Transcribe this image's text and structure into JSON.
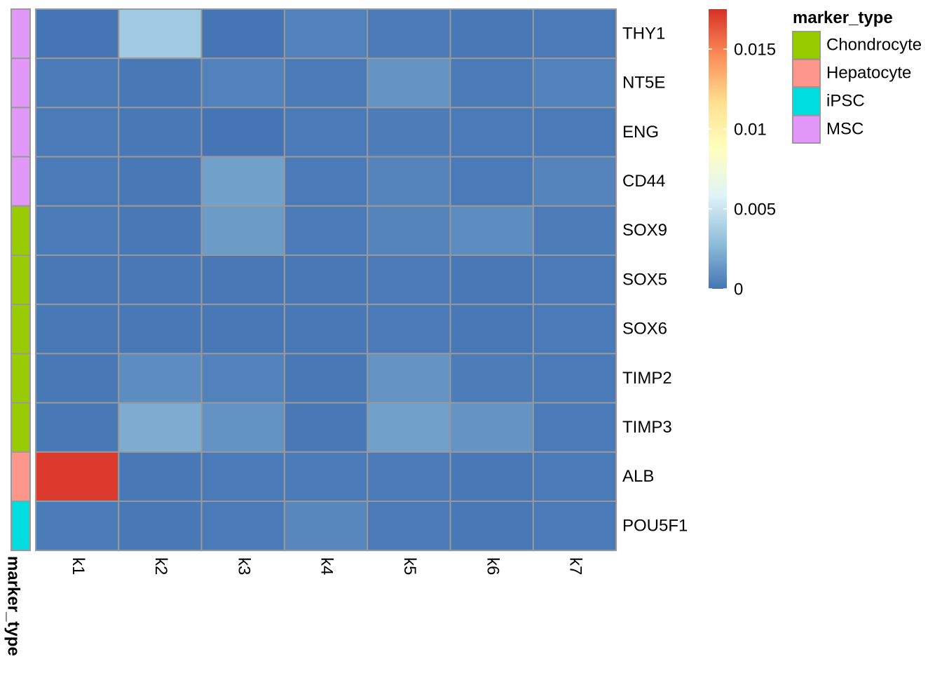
{
  "chart_data": {
    "type": "heatmap",
    "title": "",
    "columns": [
      "k1",
      "k2",
      "k3",
      "k4",
      "k5",
      "k6",
      "k7"
    ],
    "rows": [
      "THY1",
      "NT5E",
      "ENG",
      "CD44",
      "SOX9",
      "SOX5",
      "SOX6",
      "TIMP2",
      "TIMP3",
      "ALB",
      "POU5F1"
    ],
    "values": [
      [
        0.0,
        0.0035,
        0.0,
        0.0005,
        0.0002,
        0.0001,
        0.0002
      ],
      [
        0.0002,
        0.0001,
        0.0005,
        0.0002,
        0.0012,
        0.0002,
        0.0005
      ],
      [
        0.0002,
        0.0001,
        0.0,
        0.0002,
        0.0003,
        0.0002,
        0.0002
      ],
      [
        0.0002,
        0.0001,
        0.0017,
        0.0002,
        0.0006,
        0.0002,
        0.0006
      ],
      [
        0.0002,
        0.0001,
        0.0015,
        0.0002,
        0.0006,
        0.0009,
        0.0003
      ],
      [
        0.0001,
        0.0001,
        0.0001,
        0.0001,
        0.0002,
        0.0001,
        0.0002
      ],
      [
        0.0001,
        0.0001,
        0.0001,
        0.0001,
        0.0002,
        0.0001,
        0.0002
      ],
      [
        0.0001,
        0.0009,
        0.0005,
        0.0001,
        0.0012,
        0.0003,
        0.0002
      ],
      [
        0.0001,
        0.0022,
        0.0011,
        0.0001,
        0.0017,
        0.0012,
        0.0002
      ],
      [
        0.0172,
        0.0001,
        0.0002,
        0.0002,
        0.0002,
        0.0001,
        0.0002
      ],
      [
        0.0002,
        0.0001,
        0.0002,
        0.0007,
        0.0002,
        0.0001,
        0.0002
      ]
    ],
    "row_annotation": {
      "title": "marker_type",
      "values": [
        "MSC",
        "MSC",
        "MSC",
        "MSC",
        "Chondrocyte",
        "Chondrocyte",
        "Chondrocyte",
        "Chondrocyte",
        "Chondrocyte",
        "Hepatocyte",
        "iPSC"
      ],
      "legend": [
        {
          "name": "Chondrocyte",
          "color": "#99cc00"
        },
        {
          "name": "Hepatocyte",
          "color": "#ff968c"
        },
        {
          "name": "iPSC",
          "color": "#00dde0"
        },
        {
          "name": "MSC",
          "color": "#e198f9"
        }
      ]
    },
    "colorbar": {
      "range": [
        0,
        0.0175
      ],
      "ticks": [
        {
          "value": 0,
          "label": "0"
        },
        {
          "value": 0.005,
          "label": "0.005"
        },
        {
          "value": 0.01,
          "label": "0.01"
        },
        {
          "value": 0.015,
          "label": "0.015"
        }
      ],
      "colors": [
        "#4575b4",
        "#91bfdb",
        "#e0f3f8",
        "#ffffbf",
        "#fee090",
        "#fc8d59",
        "#d73027"
      ]
    },
    "grid_color": "#999999"
  }
}
